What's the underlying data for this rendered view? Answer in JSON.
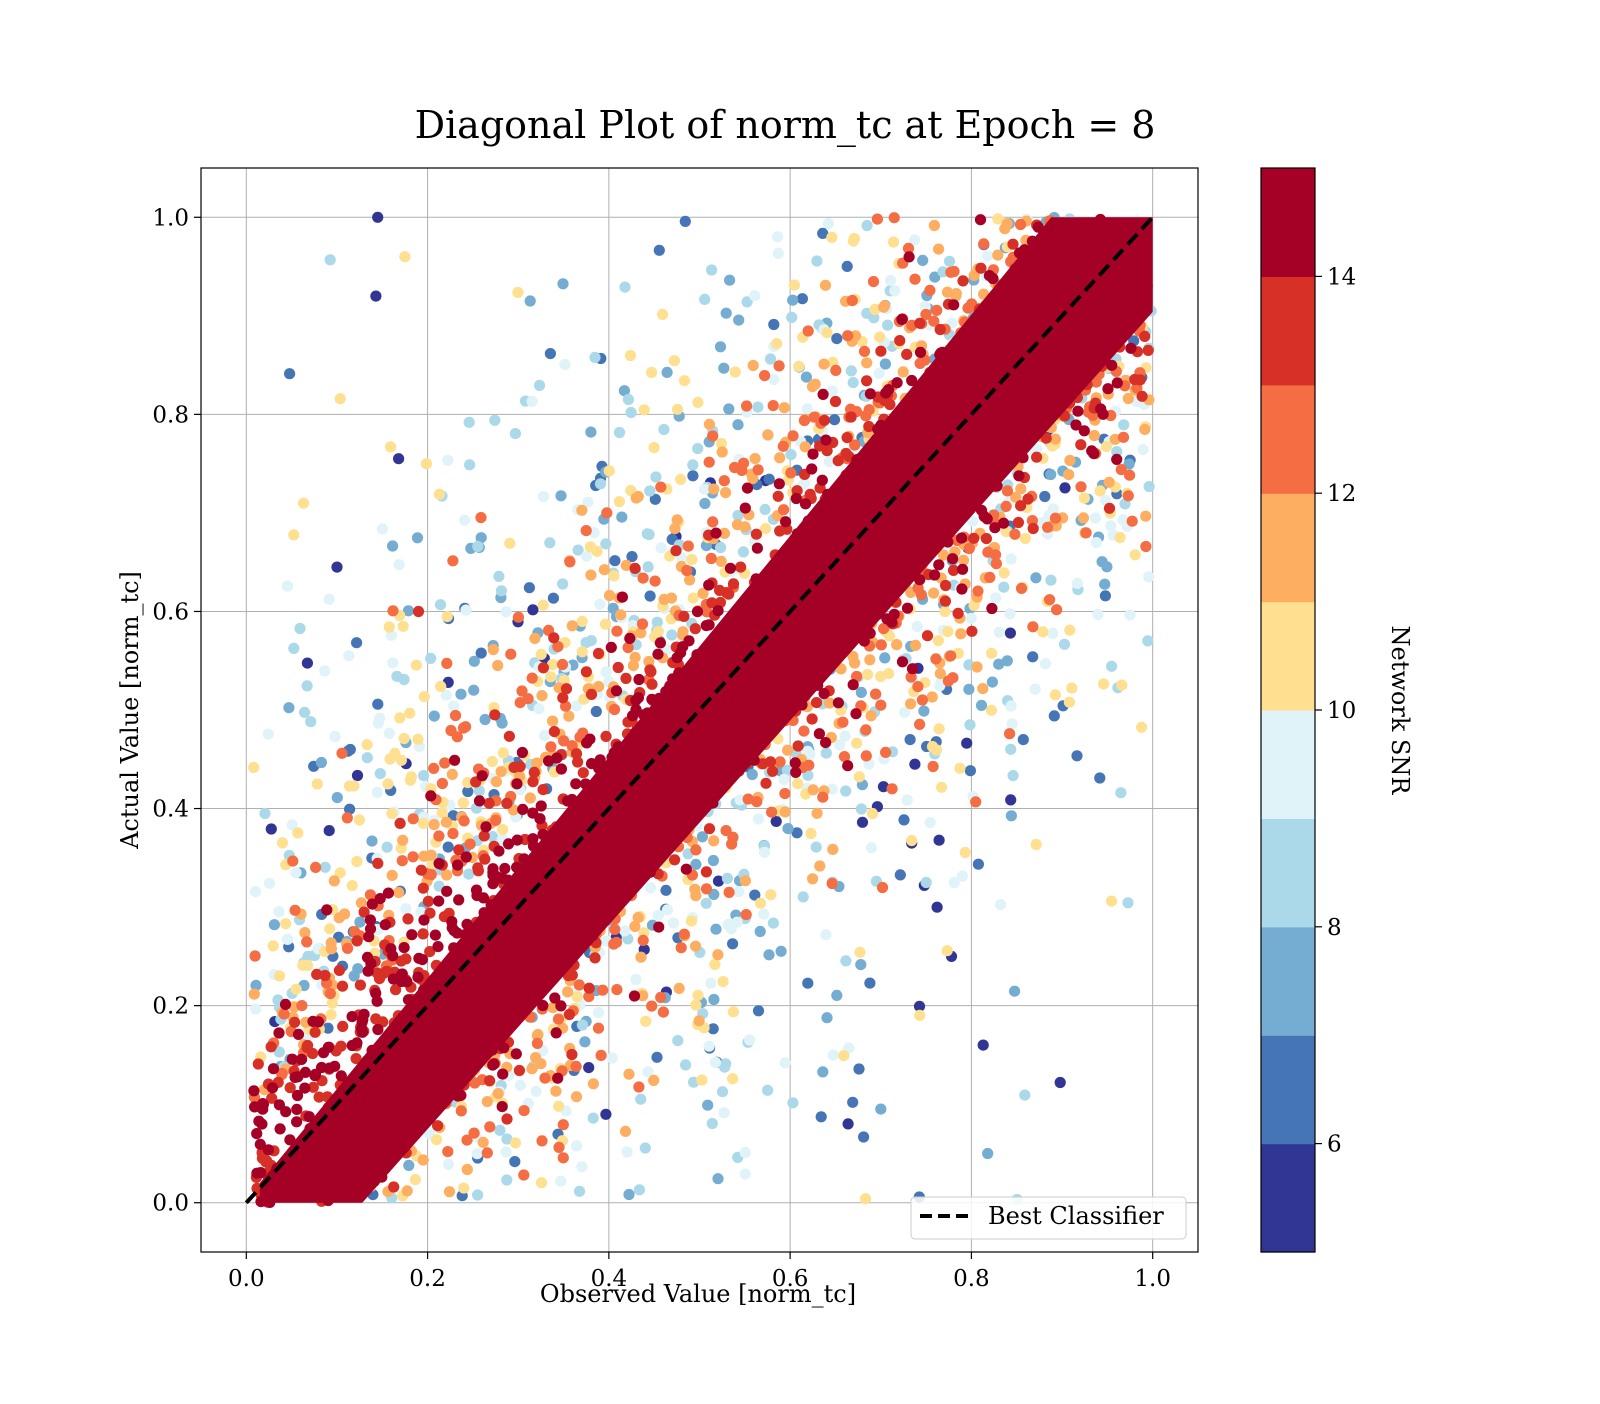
{
  "chart_data": {
    "type": "scatter",
    "title": "Diagonal Plot of norm_tc at Epoch = 8",
    "xlabel": "Observed Value [norm_tc]",
    "ylabel": "Actual Value [norm_tc]",
    "xlim": [
      -0.05,
      1.05
    ],
    "ylim": [
      -0.05,
      1.05
    ],
    "xticks": [
      "0.0",
      "0.2",
      "0.4",
      "0.6",
      "0.8",
      "1.0"
    ],
    "yticks": [
      "0.0",
      "0.2",
      "0.4",
      "0.6",
      "0.8",
      "1.0"
    ],
    "grid": true,
    "colorbar": {
      "label": "Network SNR",
      "range": [
        5,
        15
      ],
      "levels": [
        5,
        6,
        7,
        8,
        9,
        10,
        11,
        12,
        13,
        14,
        15
      ],
      "ticks": [
        "6",
        "8",
        "10",
        "12",
        "14"
      ],
      "colors": [
        "#313695",
        "#4575b4",
        "#74add1",
        "#abd9e9",
        "#e0f3f8",
        "#fee090",
        "#fdae61",
        "#f46d43",
        "#d73027",
        "#a50026"
      ]
    },
    "reference_line": {
      "label": "Best Classifier",
      "x": [
        0,
        1
      ],
      "y": [
        0,
        1
      ],
      "style": "dashed",
      "color": "#000000"
    },
    "legend": {
      "position": "lower-right",
      "entries": [
        "Best Classifier"
      ]
    },
    "distribution": {
      "description_values": "dense high-SNR band along y = x; lower-SNR points scatter farther from the diagonal",
      "band_halfwidth_high_snr": 0.08,
      "scatter_points_sample": [
        {
          "x": 0.145,
          "y": 1.0,
          "snr": 5.5
        },
        {
          "x": 0.143,
          "y": 0.92,
          "snr": 5.5
        },
        {
          "x": 0.175,
          "y": 0.96,
          "snr": 10.5
        },
        {
          "x": 0.1,
          "y": 0.645,
          "snr": 5.5
        },
        {
          "x": 0.168,
          "y": 0.755,
          "snr": 5.5
        },
        {
          "x": 0.843,
          "y": 0.578,
          "snr": 5.5
        },
        {
          "x": 0.898,
          "y": 0.122,
          "snr": 5.5
        },
        {
          "x": 0.813,
          "y": 0.16,
          "snr": 5.5
        },
        {
          "x": 0.818,
          "y": 0.05,
          "snr": 7.5
        },
        {
          "x": 0.748,
          "y": 0.322,
          "snr": 5.5
        },
        {
          "x": 0.778,
          "y": 0.25,
          "snr": 5.5
        },
        {
          "x": 0.092,
          "y": 0.278,
          "snr": 10.5
        },
        {
          "x": 0.068,
          "y": 0.25,
          "snr": 8.5
        },
        {
          "x": 0.03,
          "y": 0.136,
          "snr": 14.5
        },
        {
          "x": 0.19,
          "y": 0.6,
          "snr": 13.5
        },
        {
          "x": 0.664,
          "y": 0.08,
          "snr": 5.5
        },
        {
          "x": 0.7,
          "y": 0.095,
          "snr": 7.5
        }
      ]
    }
  }
}
